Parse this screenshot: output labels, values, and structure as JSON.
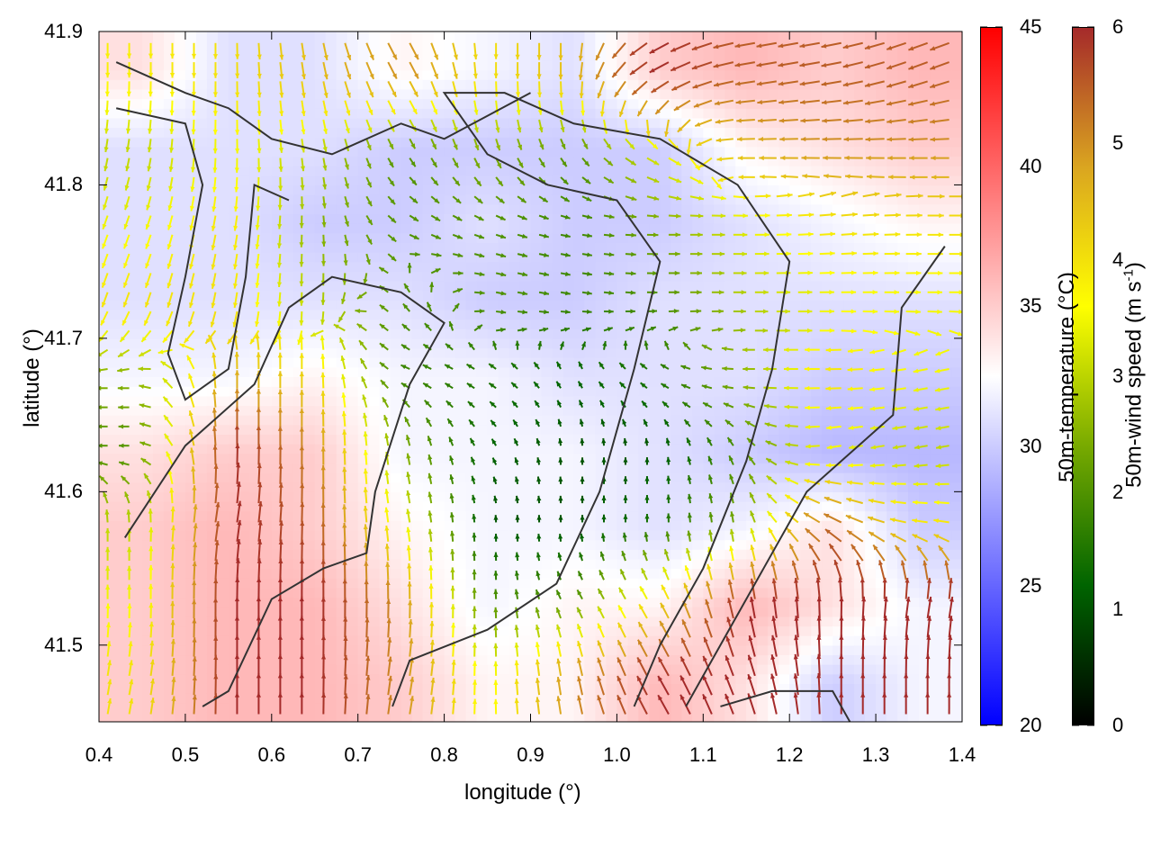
{
  "chart_data": {
    "type": "vector-field",
    "xlabel": "longitude (°)",
    "ylabel": "latitude (°)",
    "xlim": [
      0.4,
      1.4
    ],
    "ylim": [
      41.45,
      41.9
    ],
    "xticks": [
      "0.4",
      "0.5",
      "0.6",
      "0.7",
      "0.8",
      "0.9",
      "1.0",
      "1.1",
      "1.2",
      "1.3",
      "1.4"
    ],
    "yticks": [
      "41.5",
      "41.6",
      "41.7",
      "41.8",
      "41.9"
    ],
    "temperature_colorbar": {
      "label": "50m-temperature (°C)",
      "range": [
        20,
        45
      ],
      "ticks": [
        "20",
        "25",
        "30",
        "35",
        "40",
        "45"
      ],
      "colors": [
        "#0000ff",
        "#ffffff",
        "#ff0000"
      ]
    },
    "wind_colorbar": {
      "label_main": "50m-wind speed (m s",
      "label_sup": "-1",
      "label_end": ")",
      "range": [
        0,
        6
      ],
      "ticks": [
        "0",
        "1",
        "2",
        "3",
        "4",
        "5",
        "6"
      ],
      "colors": [
        "#000000",
        "#006400",
        "#78aa00",
        "#ffff00",
        "#daa520",
        "#a52a2a"
      ]
    },
    "grid_lon": [
      0.45,
      0.55,
      0.65,
      0.75,
      0.85,
      0.95,
      1.05,
      1.15,
      1.25,
      1.35
    ],
    "grid_lat": [
      41.875,
      41.825,
      41.775,
      41.725,
      41.675,
      41.625,
      41.575,
      41.525,
      41.475
    ],
    "temperature": [
      [
        34,
        31,
        31,
        33,
        32,
        31,
        35,
        36,
        35,
        36
      ],
      [
        31,
        31,
        31,
        30,
        30,
        30,
        30,
        33,
        34,
        35
      ],
      [
        31,
        31,
        30,
        30,
        31,
        30,
        30,
        31,
        32,
        33
      ],
      [
        31,
        31,
        31,
        31,
        30,
        30,
        31,
        31,
        31,
        31
      ],
      [
        32,
        32,
        33,
        32,
        32,
        31,
        31,
        31,
        30,
        30
      ],
      [
        34,
        35,
        35,
        32,
        32,
        32,
        31,
        30,
        29,
        29
      ],
      [
        35,
        36,
        35,
        33,
        32,
        32,
        31,
        32,
        34,
        30
      ],
      [
        35,
        36,
        36,
        34,
        32,
        33,
        33,
        36,
        34,
        32
      ],
      [
        35,
        36,
        36,
        35,
        33,
        33,
        36,
        34,
        30,
        32
      ]
    ],
    "wind_speed": [
      [
        3.8,
        4,
        4.5,
        5,
        4,
        4.5,
        6,
        5.5,
        5.5,
        5.5
      ],
      [
        3,
        3.5,
        3,
        2,
        2.5,
        2,
        3.5,
        4.5,
        5,
        5
      ],
      [
        3.5,
        4,
        2.5,
        2,
        2,
        1.8,
        2.5,
        3.5,
        4,
        4
      ],
      [
        4,
        4,
        3,
        2,
        2,
        1.8,
        2,
        3,
        3.5,
        3.5
      ],
      [
        2.5,
        4.5,
        4,
        1.8,
        1.5,
        1.2,
        1.5,
        2.5,
        4,
        3.5
      ],
      [
        2,
        6,
        5,
        2.5,
        1.2,
        1,
        1,
        2,
        3.5,
        3
      ],
      [
        3,
        6,
        5.5,
        3.5,
        1,
        1,
        1.5,
        2.5,
        5.5,
        4
      ],
      [
        3.5,
        6,
        6,
        5,
        2,
        2,
        4,
        6,
        6,
        6
      ],
      [
        4,
        6,
        6,
        5,
        3.5,
        5,
        6,
        6,
        6,
        6
      ]
    ],
    "wind_direction_deg": [
      [
        -90,
        -90,
        -80,
        -60,
        -90,
        -90,
        -150,
        -170,
        -170,
        -160
      ],
      [
        -100,
        -90,
        -80,
        -60,
        -70,
        -60,
        -30,
        180,
        180,
        180
      ],
      [
        -110,
        -100,
        -90,
        -30,
        -20,
        -10,
        0,
        0,
        5,
        0
      ],
      [
        -110,
        -100,
        -90,
        130,
        -10,
        -10,
        0,
        0,
        0,
        0
      ],
      [
        180,
        90,
        90,
        160,
        150,
        120,
        150,
        180,
        180,
        -170
      ],
      [
        180,
        90,
        90,
        100,
        120,
        90,
        90,
        120,
        -170,
        -170
      ],
      [
        90,
        80,
        90,
        100,
        90,
        90,
        90,
        100,
        150,
        170
      ],
      [
        90,
        90,
        90,
        90,
        90,
        120,
        120,
        100,
        90,
        80
      ],
      [
        80,
        90,
        90,
        80,
        90,
        100,
        120,
        110,
        90,
        90
      ]
    ],
    "contours": [
      [
        [
          0.43,
          41.57
        ],
        [
          0.5,
          41.63
        ],
        [
          0.58,
          41.67
        ],
        [
          0.62,
          41.72
        ],
        [
          0.67,
          41.74
        ],
        [
          0.75,
          41.73
        ],
        [
          0.8,
          41.71
        ],
        [
          0.76,
          41.67
        ],
        [
          0.72,
          41.6
        ],
        [
          0.71,
          41.56
        ],
        [
          0.66,
          41.55
        ],
        [
          0.6,
          41.53
        ],
        [
          0.55,
          41.47
        ],
        [
          0.52,
          41.46
        ]
      ],
      [
        [
          0.74,
          41.46
        ],
        [
          0.76,
          41.49
        ],
        [
          0.85,
          41.51
        ],
        [
          0.93,
          41.54
        ],
        [
          0.98,
          41.6
        ],
        [
          1.02,
          41.68
        ],
        [
          1.05,
          41.75
        ],
        [
          1.0,
          41.79
        ],
        [
          0.92,
          41.8
        ],
        [
          0.85,
          41.82
        ],
        [
          0.8,
          41.86
        ],
        [
          0.87,
          41.86
        ],
        [
          0.95,
          41.84
        ],
        [
          1.05,
          41.83
        ],
        [
          1.14,
          41.8
        ],
        [
          1.2,
          41.75
        ],
        [
          1.18,
          41.68
        ],
        [
          1.15,
          41.62
        ],
        [
          1.1,
          41.55
        ],
        [
          1.05,
          41.5
        ],
        [
          1.02,
          41.46
        ]
      ],
      [
        [
          0.42,
          41.88
        ],
        [
          0.5,
          41.86
        ],
        [
          0.55,
          41.85
        ],
        [
          0.6,
          41.83
        ],
        [
          0.67,
          41.82
        ],
        [
          0.75,
          41.84
        ],
        [
          0.8,
          41.83
        ],
        [
          0.9,
          41.86
        ]
      ],
      [
        [
          0.42,
          41.85
        ],
        [
          0.5,
          41.84
        ],
        [
          0.52,
          41.8
        ],
        [
          0.5,
          41.74
        ],
        [
          0.48,
          41.69
        ],
        [
          0.5,
          41.66
        ],
        [
          0.55,
          41.68
        ],
        [
          0.57,
          41.74
        ],
        [
          0.58,
          41.8
        ],
        [
          0.62,
          41.79
        ]
      ],
      [
        [
          1.38,
          41.76
        ],
        [
          1.33,
          41.72
        ],
        [
          1.32,
          41.65
        ],
        [
          1.28,
          41.63
        ],
        [
          1.22,
          41.6
        ],
        [
          1.17,
          41.55
        ],
        [
          1.12,
          41.5
        ],
        [
          1.08,
          41.46
        ]
      ],
      [
        [
          1.12,
          41.46
        ],
        [
          1.18,
          41.47
        ],
        [
          1.25,
          41.47
        ],
        [
          1.27,
          41.45
        ]
      ]
    ]
  }
}
